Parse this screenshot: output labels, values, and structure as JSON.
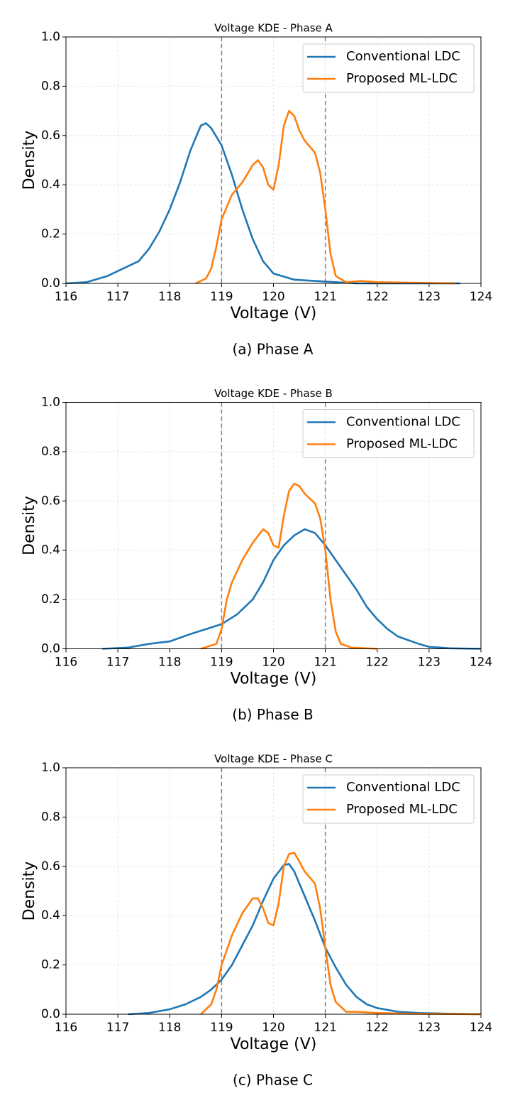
{
  "chart_data": [
    {
      "type": "line",
      "title": "Voltage KDE - Phase A",
      "xlabel": "Voltage (V)",
      "ylabel": "Density",
      "caption": "(a) Phase A",
      "xlim": [
        116,
        124
      ],
      "ylim": [
        0,
        1
      ],
      "xticks": [
        116,
        117,
        118,
        119,
        120,
        121,
        122,
        123,
        124
      ],
      "yticks": [
        {
          "value": 0,
          "label": "0.0"
        },
        0.2,
        0.4,
        0.6,
        0.8,
        {
          "value": 1,
          "label": "1.0"
        }
      ],
      "grid": true,
      "legend": "upper right",
      "vlines": [
        119,
        121
      ],
      "series": [
        {
          "name": "Conventional LDC",
          "color": "#1f77b4",
          "x": [
            116.0,
            116.4,
            116.8,
            117.2,
            117.4,
            117.6,
            117.8,
            118.0,
            118.2,
            118.4,
            118.6,
            118.7,
            118.8,
            119.0,
            119.2,
            119.4,
            119.6,
            119.8,
            120.0,
            120.4,
            120.8,
            121.2,
            121.6,
            122.4,
            123.6
          ],
          "values": [
            0.0,
            0.005,
            0.03,
            0.07,
            0.09,
            0.14,
            0.21,
            0.3,
            0.41,
            0.54,
            0.64,
            0.65,
            0.63,
            0.56,
            0.44,
            0.3,
            0.18,
            0.09,
            0.04,
            0.015,
            0.01,
            0.005,
            0.0,
            0.0,
            0.0
          ]
        },
        {
          "name": "Proposed ML-LDC",
          "color": "#ff7f0e",
          "x": [
            118.5,
            118.7,
            118.8,
            118.9,
            119.0,
            119.2,
            119.4,
            119.6,
            119.7,
            119.8,
            119.9,
            120.0,
            120.1,
            120.2,
            120.3,
            120.4,
            120.5,
            120.6,
            120.8,
            120.9,
            121.0,
            121.1,
            121.2,
            121.4,
            121.7,
            122.0,
            122.5,
            123.5
          ],
          "values": [
            0.0,
            0.02,
            0.06,
            0.15,
            0.26,
            0.36,
            0.41,
            0.48,
            0.5,
            0.47,
            0.4,
            0.38,
            0.48,
            0.64,
            0.7,
            0.68,
            0.62,
            0.58,
            0.53,
            0.45,
            0.3,
            0.12,
            0.03,
            0.005,
            0.01,
            0.005,
            0.003,
            0.0
          ]
        }
      ]
    },
    {
      "type": "line",
      "title": "Voltage KDE - Phase B",
      "xlabel": "Voltage (V)",
      "ylabel": "Density",
      "caption": "(b) Phase B",
      "xlim": [
        116,
        124
      ],
      "ylim": [
        0,
        1
      ],
      "xticks": [
        116,
        117,
        118,
        119,
        120,
        121,
        122,
        123,
        124
      ],
      "yticks": [
        {
          "value": 0,
          "label": "0.0"
        },
        0.2,
        0.4,
        0.6,
        0.8,
        {
          "value": 1,
          "label": "1.0"
        }
      ],
      "grid": true,
      "legend": "upper right",
      "vlines": [
        119,
        121
      ],
      "series": [
        {
          "name": "Conventional LDC",
          "color": "#1f77b4",
          "x": [
            116.7,
            117.2,
            117.6,
            118.0,
            118.4,
            118.7,
            119.0,
            119.3,
            119.6,
            119.8,
            120.0,
            120.2,
            120.4,
            120.6,
            120.8,
            121.0,
            121.2,
            121.4,
            121.6,
            121.8,
            122.0,
            122.2,
            122.4,
            122.8,
            123.0,
            123.4,
            124.0
          ],
          "values": [
            0.0,
            0.005,
            0.02,
            0.03,
            0.06,
            0.08,
            0.1,
            0.14,
            0.2,
            0.27,
            0.36,
            0.42,
            0.46,
            0.485,
            0.47,
            0.42,
            0.36,
            0.3,
            0.24,
            0.17,
            0.12,
            0.08,
            0.05,
            0.02,
            0.008,
            0.002,
            0.0
          ]
        },
        {
          "name": "Proposed ML-LDC",
          "color": "#ff7f0e",
          "x": [
            118.6,
            118.9,
            119.0,
            119.1,
            119.2,
            119.4,
            119.6,
            119.8,
            119.9,
            120.0,
            120.1,
            120.2,
            120.3,
            120.4,
            120.5,
            120.6,
            120.8,
            120.9,
            121.0,
            121.1,
            121.2,
            121.3,
            121.5,
            122.0
          ],
          "values": [
            0.0,
            0.02,
            0.08,
            0.2,
            0.27,
            0.36,
            0.43,
            0.485,
            0.47,
            0.42,
            0.41,
            0.54,
            0.64,
            0.67,
            0.66,
            0.63,
            0.59,
            0.53,
            0.4,
            0.2,
            0.07,
            0.02,
            0.005,
            0.0
          ]
        }
      ]
    },
    {
      "type": "line",
      "title": "Voltage KDE - Phase C",
      "xlabel": "Voltage (V)",
      "ylabel": "Density",
      "caption": "(c) Phase C",
      "xlim": [
        116,
        124
      ],
      "ylim": [
        0,
        1
      ],
      "xticks": [
        116,
        117,
        118,
        119,
        120,
        121,
        122,
        123,
        124
      ],
      "yticks": [
        {
          "value": 0,
          "label": "0.0"
        },
        0.2,
        0.4,
        0.6,
        0.8,
        {
          "value": 1,
          "label": "1.0"
        }
      ],
      "grid": true,
      "legend": "upper right",
      "vlines": [
        119,
        121
      ],
      "series": [
        {
          "name": "Conventional LDC",
          "color": "#1f77b4",
          "x": [
            117.2,
            117.6,
            118.0,
            118.3,
            118.6,
            118.8,
            119.0,
            119.2,
            119.4,
            119.6,
            119.8,
            120.0,
            120.2,
            120.3,
            120.4,
            120.6,
            120.8,
            121.0,
            121.2,
            121.4,
            121.6,
            121.8,
            122.0,
            122.4,
            122.8,
            123.4,
            124.0
          ],
          "values": [
            0.0,
            0.005,
            0.02,
            0.04,
            0.07,
            0.1,
            0.14,
            0.2,
            0.28,
            0.36,
            0.46,
            0.55,
            0.605,
            0.61,
            0.58,
            0.48,
            0.38,
            0.27,
            0.19,
            0.12,
            0.07,
            0.04,
            0.025,
            0.01,
            0.005,
            0.002,
            0.0
          ]
        },
        {
          "name": "Proposed ML-LDC",
          "color": "#ff7f0e",
          "x": [
            118.6,
            118.8,
            118.9,
            119.0,
            119.2,
            119.4,
            119.6,
            119.7,
            119.8,
            119.9,
            120.0,
            120.1,
            120.2,
            120.3,
            120.4,
            120.5,
            120.6,
            120.8,
            120.9,
            121.0,
            121.1,
            121.2,
            121.4,
            121.6,
            122.0,
            122.6,
            124.0
          ],
          "values": [
            0.0,
            0.04,
            0.1,
            0.2,
            0.32,
            0.41,
            0.47,
            0.47,
            0.43,
            0.37,
            0.36,
            0.45,
            0.6,
            0.65,
            0.655,
            0.62,
            0.58,
            0.53,
            0.43,
            0.27,
            0.12,
            0.05,
            0.01,
            0.01,
            0.005,
            0.002,
            0.0
          ]
        }
      ]
    }
  ]
}
